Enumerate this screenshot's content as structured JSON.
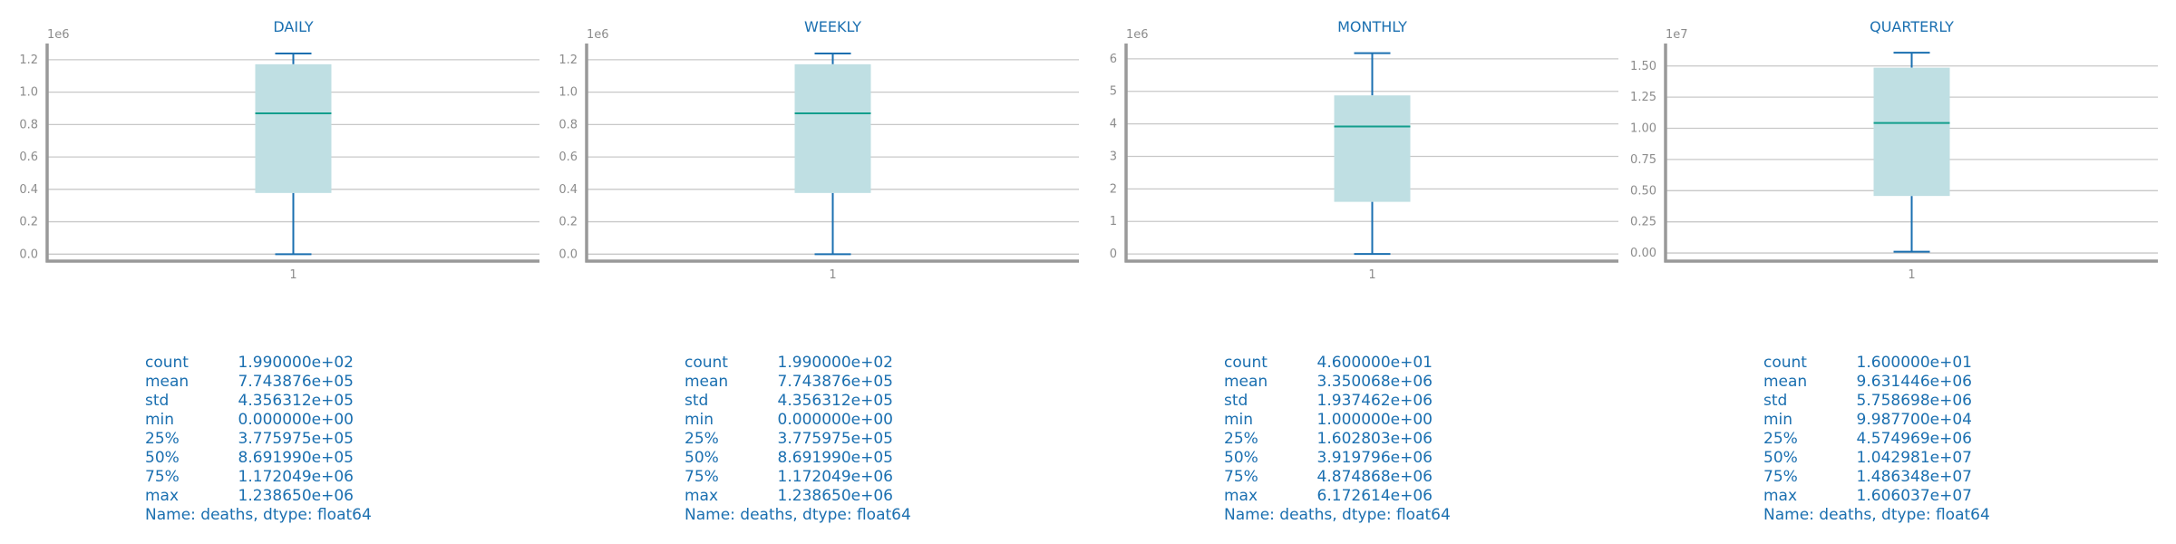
{
  "colors": {
    "title": "#1a6fb0",
    "box_fill": "#bfdfe3",
    "whisker": "#1a6fb0",
    "median": "#129e8c",
    "grid": "#c8c8c8",
    "spine": "#999999",
    "tick_text": "#8c8c8c",
    "stats_text": "#1a6fb0"
  },
  "chart_data": [
    {
      "type": "box",
      "title": "DAILY",
      "exponent_label": "1e6",
      "scale": 1000000,
      "xticks": [
        "1"
      ],
      "yticks": [
        0.0,
        0.2,
        0.4,
        0.6,
        0.8,
        1.0,
        1.2
      ],
      "ytick_labels": [
        "0.0",
        "0.2",
        "0.4",
        "0.6",
        "0.8",
        "1.0",
        "1.2"
      ],
      "ylim": [
        -0.043,
        1.3
      ],
      "grid": true,
      "box": {
        "min": 0.0,
        "q1": 377597.5,
        "median": 869199.0,
        "q3": 1172049.0,
        "max": 1238650.0
      },
      "stats": [
        {
          "key": "count",
          "value": "1.990000e+02"
        },
        {
          "key": "mean",
          "value": "7.743876e+05"
        },
        {
          "key": "std",
          "value": "4.356312e+05"
        },
        {
          "key": "min",
          "value": "0.000000e+00"
        },
        {
          "key": "25%",
          "value": "3.775975e+05"
        },
        {
          "key": "50%",
          "value": "8.691990e+05"
        },
        {
          "key": "75%",
          "value": "1.172049e+06"
        },
        {
          "key": "max",
          "value": "1.238650e+06"
        }
      ],
      "stats_footer": "Name: deaths, dtype: float64"
    },
    {
      "type": "box",
      "title": "WEEKLY",
      "exponent_label": "1e6",
      "scale": 1000000,
      "xticks": [
        "1"
      ],
      "yticks": [
        0.0,
        0.2,
        0.4,
        0.6,
        0.8,
        1.0,
        1.2
      ],
      "ytick_labels": [
        "0.0",
        "0.2",
        "0.4",
        "0.6",
        "0.8",
        "1.0",
        "1.2"
      ],
      "ylim": [
        -0.043,
        1.3
      ],
      "grid": true,
      "box": {
        "min": 0.0,
        "q1": 377597.5,
        "median": 869199.0,
        "q3": 1172049.0,
        "max": 1238650.0
      },
      "stats": [
        {
          "key": "count",
          "value": "1.990000e+02"
        },
        {
          "key": "mean",
          "value": "7.743876e+05"
        },
        {
          "key": "std",
          "value": "4.356312e+05"
        },
        {
          "key": "min",
          "value": "0.000000e+00"
        },
        {
          "key": "25%",
          "value": "3.775975e+05"
        },
        {
          "key": "50%",
          "value": "8.691990e+05"
        },
        {
          "key": "75%",
          "value": "1.172049e+06"
        },
        {
          "key": "max",
          "value": "1.238650e+06"
        }
      ],
      "stats_footer": "Name: deaths, dtype: float64"
    },
    {
      "type": "box",
      "title": "MONTHLY",
      "exponent_label": "1e6",
      "scale": 1000000,
      "xticks": [
        "1"
      ],
      "yticks": [
        0,
        1,
        2,
        3,
        4,
        5,
        6
      ],
      "ytick_labels": [
        "0",
        "1",
        "2",
        "3",
        "4",
        "5",
        "6"
      ],
      "ylim": [
        -0.22,
        6.47
      ],
      "grid": true,
      "box": {
        "min": 1.0,
        "q1": 1602803.0,
        "median": 3919796.0,
        "q3": 4874868.0,
        "max": 6172614.0
      },
      "stats": [
        {
          "key": "count",
          "value": "4.600000e+01"
        },
        {
          "key": "mean",
          "value": "3.350068e+06"
        },
        {
          "key": "std",
          "value": "1.937462e+06"
        },
        {
          "key": "min",
          "value": "1.000000e+00"
        },
        {
          "key": "25%",
          "value": "1.602803e+06"
        },
        {
          "key": "50%",
          "value": "3.919796e+06"
        },
        {
          "key": "75%",
          "value": "4.874868e+06"
        },
        {
          "key": "max",
          "value": "6.172614e+06"
        }
      ],
      "stats_footer": "Name: deaths, dtype: float64"
    },
    {
      "type": "box",
      "title": "QUARTERLY",
      "exponent_label": "1e7",
      "scale": 10000000,
      "xticks": [
        "1"
      ],
      "yticks": [
        0.0,
        0.25,
        0.5,
        0.75,
        1.0,
        1.25,
        1.5
      ],
      "ytick_labels": [
        "0.00",
        "0.25",
        "0.50",
        "0.75",
        "1.00",
        "1.25",
        "1.50"
      ],
      "ylim": [
        -0.065,
        1.68
      ],
      "grid": true,
      "box": {
        "min": 99877.0,
        "q1": 4574969.0,
        "median": 10429810.0,
        "q3": 14863480.0,
        "max": 16060370.0
      },
      "stats": [
        {
          "key": "count",
          "value": "1.600000e+01"
        },
        {
          "key": "mean",
          "value": "9.631446e+06"
        },
        {
          "key": "std",
          "value": "5.758698e+06"
        },
        {
          "key": "min",
          "value": "9.987700e+04"
        },
        {
          "key": "25%",
          "value": "4.574969e+06"
        },
        {
          "key": "50%",
          "value": "1.042981e+07"
        },
        {
          "key": "75%",
          "value": "1.486348e+07"
        },
        {
          "key": "max",
          "value": "1.606037e+07"
        }
      ],
      "stats_footer": "Name: deaths, dtype: float64"
    }
  ]
}
